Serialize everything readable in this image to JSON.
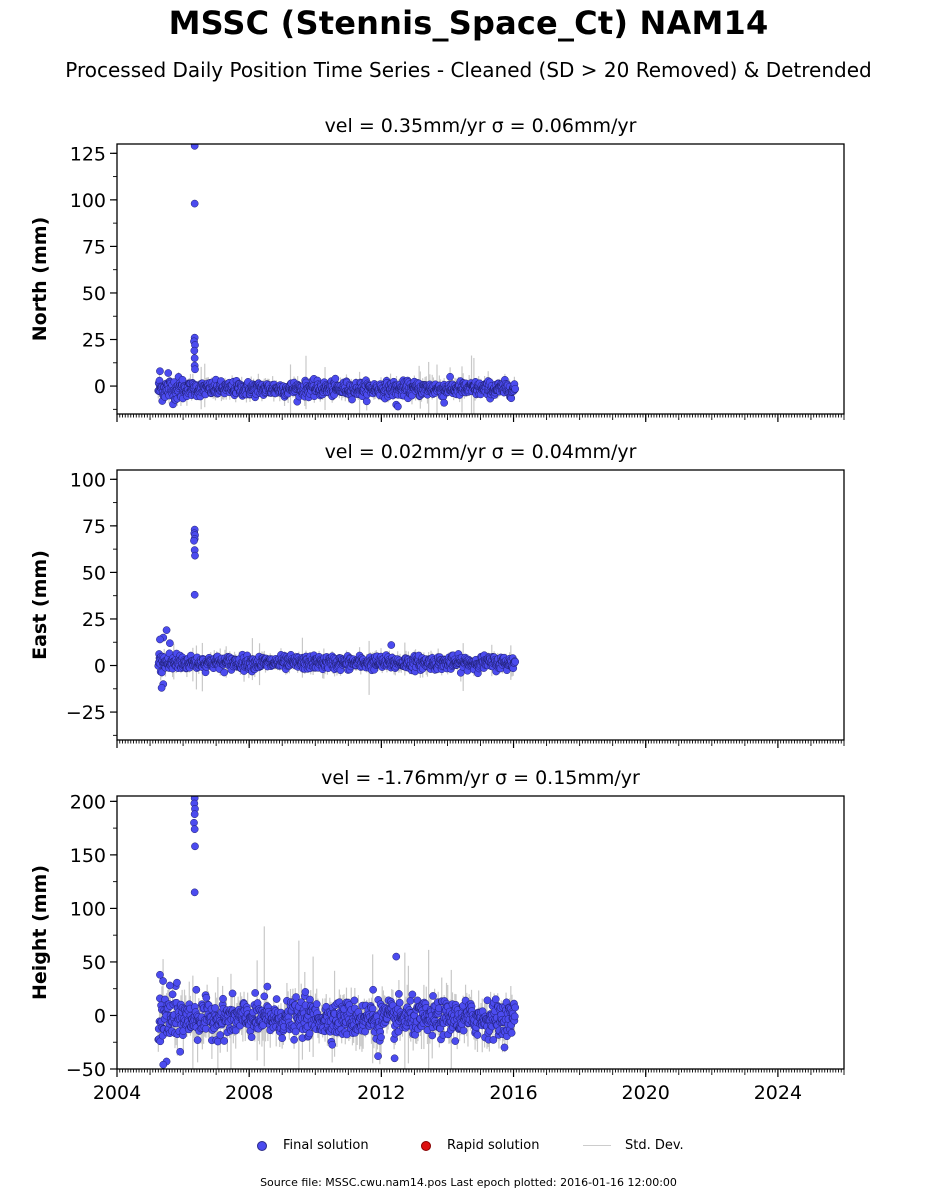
{
  "title": "MSSC (Stennis_Space_Ct) NAM14",
  "subtitle": "Processed Daily Position Time Series - Cleaned (SD > 20 Removed) & Detrended",
  "footer": "Source file: MSSC.cwu.nam14.pos  Last epoch plotted: 2016-01-16 12:00:00",
  "legend": {
    "final": "Final solution",
    "rapid": "Rapid solution",
    "std": "Std. Dev."
  },
  "colors": {
    "final": "#4b4bef",
    "final_edge": "#1e1e6e",
    "rapid": "#dd1111",
    "std": "#c8c8c8"
  },
  "chart_data": [
    {
      "type": "scatter",
      "title": "vel = 0.35mm/yr   σ = 0.06mm/yr",
      "ylabel": "North (mm)",
      "xlim": [
        2004.0,
        2026.0
      ],
      "ylim": [
        -15,
        130
      ],
      "yticks": [
        0,
        25,
        50,
        75,
        100,
        125
      ],
      "xticks": [
        2004,
        2008,
        2012,
        2016,
        2020,
        2024
      ],
      "show_xticklabels": false,
      "data_span": [
        2005.25,
        2016.05
      ],
      "noise": 2.2,
      "base": -1.5,
      "outliers": [
        [
          2006.35,
          129
        ],
        [
          2006.35,
          98
        ],
        [
          2006.35,
          26
        ],
        [
          2006.33,
          24
        ],
        [
          2006.36,
          22
        ],
        [
          2006.34,
          19
        ],
        [
          2006.35,
          15
        ],
        [
          2006.35,
          11
        ],
        [
          2006.36,
          9
        ],
        [
          2005.3,
          8
        ],
        [
          2005.55,
          7
        ],
        [
          2013.9,
          -9
        ],
        [
          2012.45,
          -10
        ],
        [
          2012.5,
          -11
        ]
      ]
    },
    {
      "type": "scatter",
      "title": "vel = 0.02mm/yr   σ = 0.04mm/yr",
      "ylabel": "East (mm)",
      "xlim": [
        2004.0,
        2026.0
      ],
      "ylim": [
        -40,
        105
      ],
      "yticks": [
        -25,
        0,
        25,
        50,
        75,
        100
      ],
      "xticks": [
        2004,
        2008,
        2012,
        2016,
        2020,
        2024
      ],
      "show_xticklabels": false,
      "data_span": [
        2005.25,
        2016.05
      ],
      "noise": 2.0,
      "base": 1.5,
      "outliers": [
        [
          2006.35,
          73
        ],
        [
          2006.34,
          71
        ],
        [
          2006.36,
          70
        ],
        [
          2006.35,
          68
        ],
        [
          2006.33,
          67
        ],
        [
          2006.35,
          62
        ],
        [
          2006.36,
          59
        ],
        [
          2006.35,
          38
        ],
        [
          2005.5,
          19
        ],
        [
          2005.4,
          15
        ],
        [
          2005.3,
          14
        ],
        [
          2005.6,
          12
        ],
        [
          2012.3,
          11
        ],
        [
          2005.4,
          -10
        ],
        [
          2005.35,
          -12
        ]
      ]
    },
    {
      "type": "scatter",
      "title": "vel = -1.76mm/yr   σ = 0.15mm/yr",
      "ylabel": "Height (mm)",
      "xlim": [
        2004.0,
        2026.0
      ],
      "ylim": [
        -50,
        205
      ],
      "yticks": [
        -50,
        0,
        50,
        100,
        150,
        200
      ],
      "xticks": [
        2004,
        2008,
        2012,
        2016,
        2020,
        2024
      ],
      "show_xticklabels": true,
      "data_span": [
        2005.25,
        2016.05
      ],
      "noise": 9.0,
      "base": -3,
      "outliers": [
        [
          2006.35,
          203
        ],
        [
          2006.34,
          198
        ],
        [
          2006.36,
          193
        ],
        [
          2006.35,
          188
        ],
        [
          2006.33,
          180
        ],
        [
          2006.35,
          174
        ],
        [
          2006.36,
          158
        ],
        [
          2006.35,
          115
        ],
        [
          2012.45,
          55
        ],
        [
          2005.3,
          38
        ],
        [
          2005.6,
          28
        ],
        [
          2008.55,
          27
        ],
        [
          2011.75,
          24
        ],
        [
          2006.4,
          24
        ],
        [
          2009.7,
          22
        ],
        [
          2005.5,
          -43
        ],
        [
          2005.4,
          -46
        ],
        [
          2011.9,
          -38
        ],
        [
          2012.4,
          -40
        ]
      ]
    }
  ]
}
